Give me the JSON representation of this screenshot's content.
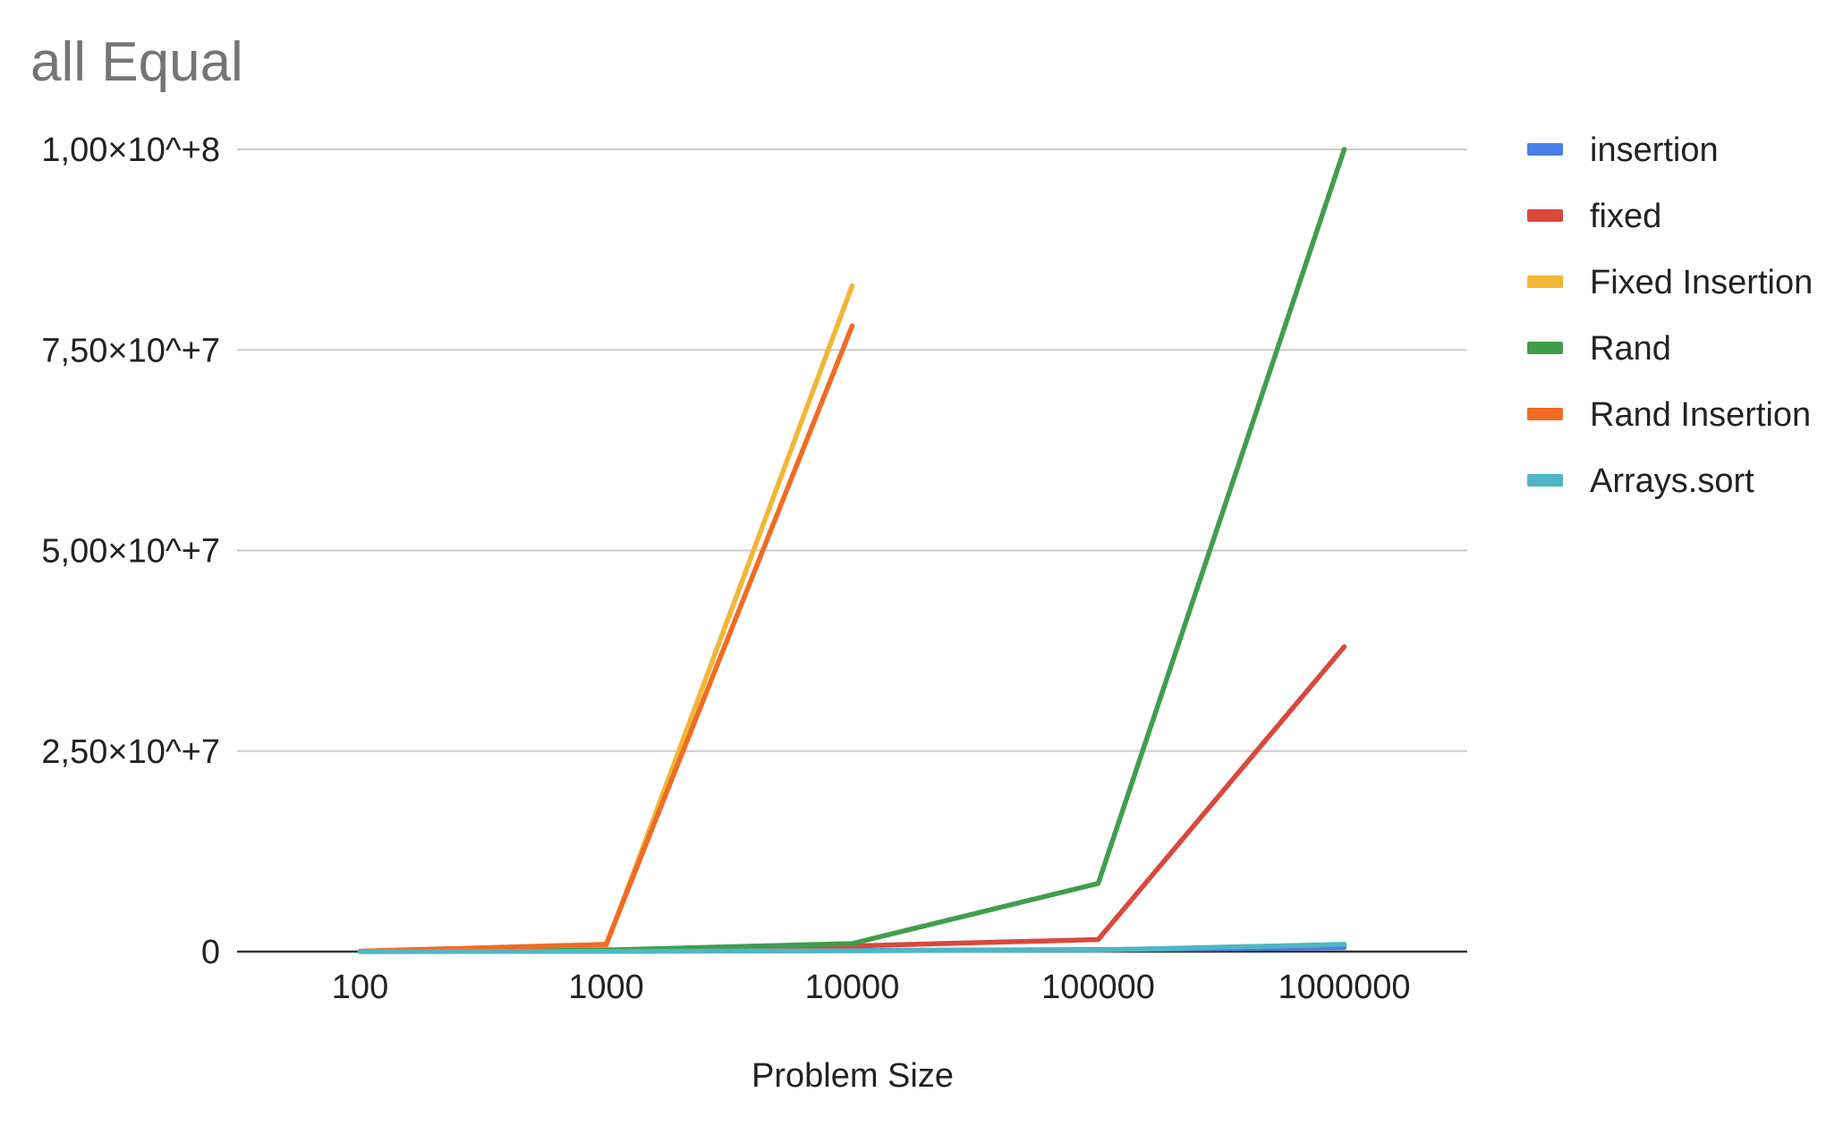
{
  "chart_data": {
    "type": "line",
    "title": "all Equal",
    "xlabel": "Problem Size",
    "ylabel": "",
    "categories": [
      "100",
      "1000",
      "10000",
      "100000",
      "1000000"
    ],
    "yticks": [
      {
        "value": 0,
        "label": "0"
      },
      {
        "value": 25000000,
        "label": "2,50×10^+7"
      },
      {
        "value": 50000000,
        "label": "5,00×10^+7"
      },
      {
        "value": 75000000,
        "label": "7,50×10^+7"
      },
      {
        "value": 100000000,
        "label": "1,00×10^+8"
      }
    ],
    "ylim": [
      0,
      100000000
    ],
    "grid": true,
    "legend_position": "right",
    "series": [
      {
        "name": "insertion",
        "color": "#4a7fe8",
        "values": [
          10000,
          50000,
          150000,
          250000,
          500000
        ]
      },
      {
        "name": "fixed",
        "color": "#d9483b",
        "values": [
          20000,
          150000,
          700000,
          1500000,
          38000000
        ]
      },
      {
        "name": "Fixed Insertion",
        "color": "#f2b637",
        "values": [
          50000,
          700000,
          83000000,
          null,
          null
        ]
      },
      {
        "name": "Rand",
        "color": "#3f9e4b",
        "values": [
          20000,
          200000,
          1000000,
          8500000,
          100000000
        ]
      },
      {
        "name": "Rand Insertion",
        "color": "#f26b22",
        "values": [
          60000,
          900000,
          78000000,
          null,
          null
        ]
      },
      {
        "name": "Arrays.sort",
        "color": "#4fb6c5",
        "values": [
          5000,
          30000,
          100000,
          200000,
          900000
        ]
      }
    ]
  }
}
